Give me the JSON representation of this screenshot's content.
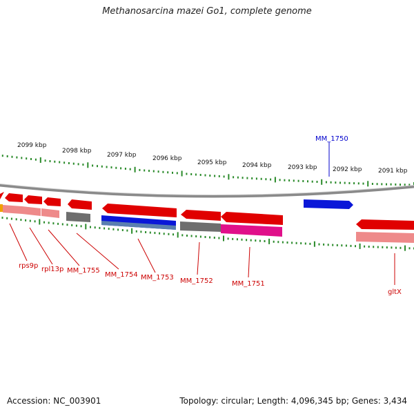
{
  "title": "Methanosarcina mazei Go1, complete genome",
  "footer": {
    "accession": "Accession: NC_003901",
    "stats": "Topology: circular; Length: 4,096,345 bp; Genes: 3,434"
  },
  "ticks": [
    "2099 kbp",
    "2098 kbp",
    "2097 kbp",
    "2096 kbp",
    "2095 kbp",
    "2094 kbp",
    "2093 kbp",
    "2092 kbp",
    "2091 kbp"
  ],
  "genes_top": [
    "MM_1750"
  ],
  "genes_bottom": [
    "rps9p",
    "rpl13p",
    "MM_1755",
    "MM_1754",
    "MM_1753",
    "MM_1752",
    "MM_1751",
    "gltX"
  ],
  "colors": {
    "forward_gene": "#e00000",
    "forward_label": "#0000cc",
    "reverse_label": "#cc0000",
    "tick": "#2a8a2a",
    "backbone": "#8a8a8a",
    "gene_blue": "#0a17d8",
    "gene_magenta": "#e0108a",
    "gene_gray": "#6e6e6e",
    "gene_pink": "#ee8a8a",
    "gene_orange": "#f0a000"
  }
}
